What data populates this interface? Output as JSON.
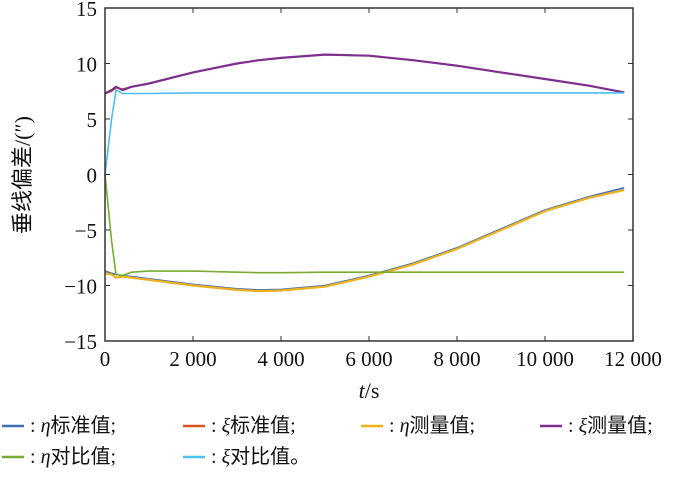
{
  "chart_data": {
    "type": "line",
    "title": "",
    "xlabel_var": "t",
    "xlabel_unit": "/s",
    "ylabel": "垂线偏差/(″)",
    "xlim": [
      0,
      12000
    ],
    "ylim": [
      -15,
      15
    ],
    "grid": false,
    "xticks": [
      0,
      2000,
      4000,
      6000,
      8000,
      10000,
      12000
    ],
    "xtick_labels": [
      "0",
      "2 000",
      "4 000",
      "6 000",
      "8 000",
      "10 000",
      "12 000"
    ],
    "yticks": [
      -15,
      -10,
      -5,
      0,
      5,
      10,
      15
    ],
    "ytick_labels": [
      "−15",
      "−10",
      "−5",
      "0",
      "5",
      "10",
      "15"
    ],
    "legend_position": "bottom",
    "x": [
      0,
      150,
      250,
      400,
      600,
      1000,
      2000,
      3000,
      3500,
      4000,
      5000,
      6000,
      7000,
      8000,
      9000,
      10000,
      11000,
      11800
    ],
    "series": [
      {
        "symbol": "η",
        "name": "标准值;",
        "color": "#3f6fb5",
        "values": [
          -8.7,
          -8.9,
          -9.0,
          -9.1,
          -9.2,
          -9.4,
          -9.9,
          -10.3,
          -10.4,
          -10.35,
          -10.0,
          -9.1,
          -8.0,
          -6.6,
          -4.9,
          -3.2,
          -2.0,
          -1.2
        ]
      },
      {
        "symbol": "ξ",
        "name": "标准值;",
        "color": "#d9541e",
        "values": [
          7.3,
          7.5,
          7.8,
          7.7,
          7.9,
          8.2,
          9.2,
          10.0,
          10.3,
          10.5,
          10.8,
          10.7,
          10.3,
          9.8,
          9.2,
          8.6,
          8.0,
          7.4
        ]
      },
      {
        "symbol": "η",
        "name": "测量值;",
        "color": "#edb120",
        "values": [
          -8.9,
          -9.0,
          -9.3,
          -9.2,
          -9.3,
          -9.5,
          -10.0,
          -10.4,
          -10.5,
          -10.45,
          -10.1,
          -9.2,
          -8.1,
          -6.7,
          -5.0,
          -3.3,
          -2.1,
          -1.4
        ]
      },
      {
        "symbol": "ξ",
        "name": "测量值;",
        "color": "#7e2f8e",
        "values": [
          7.3,
          7.6,
          7.9,
          7.6,
          7.9,
          8.2,
          9.2,
          10.0,
          10.3,
          10.5,
          10.8,
          10.7,
          10.3,
          9.8,
          9.2,
          8.6,
          8.0,
          7.4
        ]
      },
      {
        "symbol": "η",
        "name": "对比值;",
        "color": "#77ac30",
        "values": [
          0,
          -6.0,
          -9.0,
          -9.1,
          -8.8,
          -8.7,
          -8.7,
          -8.8,
          -8.85,
          -8.85,
          -8.8,
          -8.8,
          -8.8,
          -8.8,
          -8.8,
          -8.8,
          -8.8,
          -8.8
        ]
      },
      {
        "symbol": "ξ",
        "name": "对比值。",
        "color": "#4dbeee",
        "values": [
          0,
          5.0,
          7.6,
          7.3,
          7.3,
          7.3,
          7.35,
          7.35,
          7.35,
          7.35,
          7.35,
          7.35,
          7.35,
          7.35,
          7.35,
          7.35,
          7.35,
          7.35
        ]
      }
    ]
  }
}
